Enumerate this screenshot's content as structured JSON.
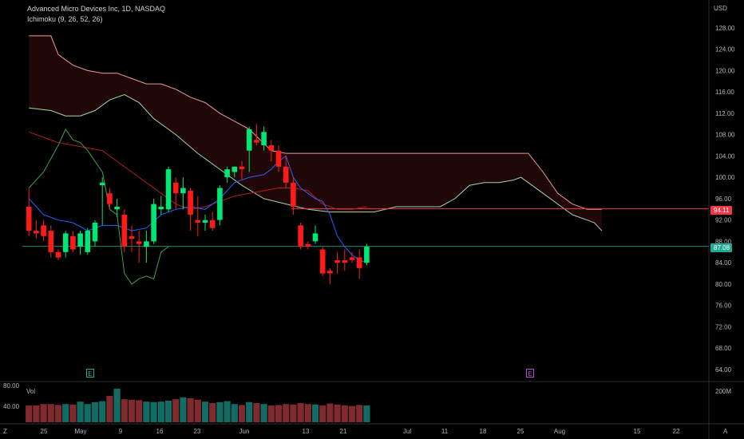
{
  "header": {
    "title": "Advanced Micro Devices Inc, 1D, NASDAQ",
    "indicator": "Ichimoku (9, 26, 52, 26)",
    "currency": "USD"
  },
  "price_badges": {
    "upper": {
      "value": "94.11",
      "color": "#f23645"
    },
    "lower": {
      "value": "87.08",
      "color": "#22ab94"
    }
  },
  "markers": {
    "earnings_1": {
      "label": "E",
      "color": "#22ab94"
    },
    "earnings_2": {
      "label": "E",
      "color": "#b84ad6"
    }
  },
  "volume": {
    "label": "Vol",
    "axis_labels": [
      "80.00",
      "40.00"
    ],
    "right_label": "200M",
    "up_color": "#136c63",
    "down_color": "#7e2a2f"
  },
  "corner": {
    "left": "Z",
    "right": "A"
  },
  "colors": {
    "up": "#00e676",
    "down": "#ff1a1a"
  },
  "chart_data": {
    "type": "candlestick",
    "title": "Advanced Micro Devices Inc, 1D, NASDAQ",
    "y_ticks": [
      128,
      124,
      120,
      116,
      112,
      108,
      104,
      100,
      96,
      92,
      88,
      84,
      80,
      76,
      72,
      68,
      64
    ],
    "ylim": [
      62,
      130
    ],
    "x_ticks": [
      "25",
      "May",
      "9",
      "16",
      "23",
      "Jun",
      "13",
      "21",
      "Jul",
      "11",
      "18",
      "25",
      "Aug",
      "15",
      "22"
    ],
    "candles": [
      {
        "o": 94.5,
        "h": 98,
        "l": 89,
        "c": 90,
        "up": false
      },
      {
        "o": 90,
        "h": 92,
        "l": 88.5,
        "c": 89.5,
        "up": false
      },
      {
        "o": 91,
        "h": 92,
        "l": 88,
        "c": 89,
        "up": false
      },
      {
        "o": 90,
        "h": 91,
        "l": 85,
        "c": 86,
        "up": false
      },
      {
        "o": 86,
        "h": 86.5,
        "l": 84.5,
        "c": 85,
        "up": false
      },
      {
        "o": 86,
        "h": 90,
        "l": 85,
        "c": 89.5,
        "up": true
      },
      {
        "o": 89,
        "h": 90,
        "l": 86,
        "c": 86.5,
        "up": false
      },
      {
        "o": 87,
        "h": 90,
        "l": 85.5,
        "c": 89.5,
        "up": true
      },
      {
        "o": 86,
        "h": 90.5,
        "l": 85.5,
        "c": 90,
        "up": true
      },
      {
        "o": 88,
        "h": 92,
        "l": 87,
        "c": 91.5,
        "up": true
      },
      {
        "o": 99,
        "h": 100,
        "l": 91,
        "c": 98.5,
        "up": true
      },
      {
        "o": 97,
        "h": 98,
        "l": 94,
        "c": 95,
        "up": false
      },
      {
        "o": 94,
        "h": 96,
        "l": 92.5,
        "c": 94.5,
        "up": true
      },
      {
        "o": 93,
        "h": 94,
        "l": 86,
        "c": 87,
        "up": false
      },
      {
        "o": 89,
        "h": 91,
        "l": 86,
        "c": 88.5,
        "up": false
      },
      {
        "o": 88,
        "h": 90,
        "l": 84,
        "c": 87.5,
        "up": false
      },
      {
        "o": 87,
        "h": 90,
        "l": 84,
        "c": 88,
        "up": true
      },
      {
        "o": 88,
        "h": 96,
        "l": 87.5,
        "c": 95,
        "up": true
      },
      {
        "o": 94,
        "h": 96.5,
        "l": 93,
        "c": 94.5,
        "up": true
      },
      {
        "o": 94,
        "h": 102,
        "l": 93.5,
        "c": 101.5,
        "up": true
      },
      {
        "o": 99,
        "h": 100,
        "l": 94,
        "c": 97,
        "up": false
      },
      {
        "o": 97,
        "h": 100,
        "l": 94,
        "c": 98,
        "up": true
      },
      {
        "o": 97.5,
        "h": 98,
        "l": 90,
        "c": 93,
        "up": false
      },
      {
        "o": 92,
        "h": 96.5,
        "l": 89,
        "c": 91.5,
        "up": false
      },
      {
        "o": 91.5,
        "h": 93,
        "l": 90,
        "c": 92,
        "up": true
      },
      {
        "o": 92,
        "h": 93.5,
        "l": 90,
        "c": 90.5,
        "up": false
      },
      {
        "o": 92,
        "h": 98.5,
        "l": 91,
        "c": 98,
        "up": true
      },
      {
        "o": 100,
        "h": 102,
        "l": 99,
        "c": 101.5,
        "up": true
      },
      {
        "o": 101,
        "h": 102,
        "l": 100,
        "c": 102,
        "up": true
      },
      {
        "o": 102,
        "h": 103,
        "l": 99.5,
        "c": 101.5,
        "up": false
      },
      {
        "o": 105,
        "h": 109.5,
        "l": 101,
        "c": 109,
        "up": true
      },
      {
        "o": 107,
        "h": 110,
        "l": 106,
        "c": 106.5,
        "up": false
      },
      {
        "o": 106,
        "h": 109.5,
        "l": 105,
        "c": 108.5,
        "up": true
      },
      {
        "o": 106,
        "h": 107,
        "l": 103,
        "c": 105,
        "up": false
      },
      {
        "o": 105,
        "h": 106,
        "l": 101,
        "c": 102,
        "up": false
      },
      {
        "o": 102,
        "h": 104,
        "l": 98,
        "c": 99,
        "up": false
      },
      {
        "o": 99,
        "h": 100,
        "l": 93,
        "c": 94.5,
        "up": false
      },
      {
        "o": 91,
        "h": 91.5,
        "l": 86.5,
        "c": 87,
        "up": false
      },
      {
        "o": 87,
        "h": 88,
        "l": 86.5,
        "c": 87.5,
        "up": false
      },
      {
        "o": 88,
        "h": 91,
        "l": 87.5,
        "c": 89.5,
        "up": true
      },
      {
        "o": 86.5,
        "h": 87,
        "l": 81.5,
        "c": 82,
        "up": false
      },
      {
        "o": 82.5,
        "h": 83,
        "l": 80,
        "c": 82,
        "up": false
      },
      {
        "o": 84,
        "h": 86,
        "l": 82,
        "c": 84.5,
        "up": false
      },
      {
        "o": 84.5,
        "h": 86.5,
        "l": 82.5,
        "c": 84,
        "up": false
      },
      {
        "o": 84.5,
        "h": 86,
        "l": 84,
        "c": 85,
        "up": false
      },
      {
        "o": 85,
        "h": 86.5,
        "l": 81,
        "c": 83,
        "up": false
      },
      {
        "o": 84,
        "h": 87.5,
        "l": 83.5,
        "c": 87,
        "up": true
      }
    ],
    "volume_values": [
      35,
      35,
      38,
      38,
      36,
      38,
      37,
      43,
      38,
      42,
      44,
      55,
      70,
      48,
      47,
      46,
      43,
      42,
      43,
      45,
      48,
      52,
      50,
      47,
      43,
      40,
      42,
      44,
      38,
      36,
      42,
      40,
      38,
      35,
      36,
      38,
      37,
      40,
      38,
      37,
      35,
      39,
      37,
      35,
      34,
      36,
      35
    ],
    "ichimoku": {
      "tenkan_color": "#2962ff",
      "kijun_color": "#b71c1c",
      "chikou_color": "#43a047",
      "senkou_a_color": "#a5d6a7",
      "senkou_b_color": "#ef9a9a",
      "cloud_color": "#200808",
      "tenkan": [
        [
          0,
          96
        ],
        [
          2,
          93
        ],
        [
          4,
          92
        ],
        [
          6,
          91.5
        ],
        [
          8,
          90
        ],
        [
          10,
          91
        ],
        [
          12,
          91
        ],
        [
          14,
          90
        ],
        [
          16,
          90.5
        ],
        [
          18,
          93
        ],
        [
          20,
          94
        ],
        [
          22,
          94.5
        ],
        [
          24,
          94
        ],
        [
          26,
          96
        ],
        [
          28,
          99
        ],
        [
          30,
          100
        ],
        [
          32,
          100.5
        ],
        [
          33,
          101.5
        ],
        [
          34,
          103
        ],
        [
          35,
          104
        ],
        [
          36,
          100
        ],
        [
          37,
          98
        ],
        [
          38,
          97
        ],
        [
          39,
          96
        ],
        [
          40,
          95.5
        ],
        [
          41,
          93
        ],
        [
          42,
          89
        ],
        [
          43,
          87
        ],
        [
          44,
          85.5
        ],
        [
          45,
          84.5
        ],
        [
          46,
          84
        ]
      ],
      "kijun": [
        [
          0,
          108.5
        ],
        [
          2,
          107.5
        ],
        [
          4,
          106.5
        ],
        [
          6,
          106
        ],
        [
          8,
          105.5
        ],
        [
          10,
          105
        ],
        [
          12,
          103
        ],
        [
          14,
          101
        ],
        [
          16,
          99
        ],
        [
          18,
          97
        ],
        [
          20,
          95
        ],
        [
          22,
          94
        ],
        [
          24,
          94.5
        ],
        [
          26,
          95.5
        ],
        [
          28,
          96.5
        ],
        [
          30,
          97
        ],
        [
          32,
          97.5
        ],
        [
          34,
          98
        ],
        [
          36,
          98
        ],
        [
          38,
          97.5
        ],
        [
          40,
          95
        ],
        [
          42,
          94
        ],
        [
          44,
          94
        ],
        [
          46,
          94.5
        ]
      ],
      "chikou": [
        [
          0,
          98
        ],
        [
          2,
          101
        ],
        [
          4,
          106
        ],
        [
          5,
          109
        ],
        [
          6,
          107
        ],
        [
          7,
          106.5
        ],
        [
          8,
          105
        ],
        [
          10,
          101
        ],
        [
          11,
          94
        ],
        [
          12,
          93
        ],
        [
          13,
          82
        ],
        [
          14,
          80
        ],
        [
          15,
          81
        ],
        [
          16,
          81.5
        ],
        [
          17,
          81
        ],
        [
          18,
          86
        ],
        [
          19,
          87
        ]
      ],
      "senkou_a": [
        [
          0,
          113
        ],
        [
          3,
          112.5
        ],
        [
          5,
          111.5
        ],
        [
          7,
          111.5
        ],
        [
          9,
          112.5
        ],
        [
          11,
          114.5
        ],
        [
          13,
          115.5
        ],
        [
          15,
          114
        ],
        [
          17,
          111
        ],
        [
          20,
          108
        ],
        [
          23,
          104.5
        ],
        [
          26,
          101.5
        ],
        [
          29,
          98.5
        ],
        [
          32,
          96
        ],
        [
          35,
          95
        ],
        [
          38,
          94
        ],
        [
          41,
          93.5
        ],
        [
          44,
          93.5
        ],
        [
          47,
          93.5
        ],
        [
          50,
          94.5
        ],
        [
          53,
          94.5
        ],
        [
          56,
          94.5
        ],
        [
          58,
          96
        ],
        [
          60,
          98.5
        ],
        [
          62,
          99
        ],
        [
          64,
          99
        ],
        [
          66,
          99.5
        ],
        [
          67,
          100
        ],
        [
          68,
          99
        ],
        [
          70,
          97
        ],
        [
          72,
          95
        ],
        [
          74,
          93
        ],
        [
          76,
          92
        ],
        [
          77,
          91.5
        ],
        [
          78,
          90
        ]
      ],
      "senkou_b": [
        [
          0,
          126.5
        ],
        [
          3,
          126.5
        ],
        [
          4,
          123
        ],
        [
          6,
          121
        ],
        [
          8,
          120
        ],
        [
          10,
          119.5
        ],
        [
          12,
          119.5
        ],
        [
          14,
          118.5
        ],
        [
          16,
          117.5
        ],
        [
          18,
          117.5
        ],
        [
          20,
          116.5
        ],
        [
          22,
          115
        ],
        [
          24,
          114
        ],
        [
          26,
          112
        ],
        [
          28,
          110.5
        ],
        [
          30,
          109
        ],
        [
          33,
          105
        ],
        [
          35,
          104.5
        ],
        [
          45,
          104.5
        ],
        [
          56,
          104.5
        ],
        [
          66,
          104.5
        ],
        [
          68,
          104.5
        ],
        [
          70,
          101
        ],
        [
          72,
          97
        ],
        [
          74,
          95
        ],
        [
          76,
          94
        ],
        [
          78,
          94
        ]
      ]
    },
    "price_lines": {
      "resistance": 94.11,
      "support": 87.08
    }
  }
}
